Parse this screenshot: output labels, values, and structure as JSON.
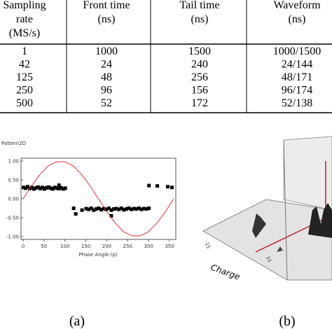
{
  "table": {
    "header": [
      [
        "Sampling",
        "rate",
        "(MS/s)"
      ],
      [
        "Front time",
        "(ns)"
      ],
      [
        "Tail time",
        "(ns)"
      ],
      [
        "Waveform",
        "(ns)"
      ]
    ],
    "rows": [
      [
        "1",
        "1000",
        "1500",
        "1000/1500"
      ],
      [
        "42",
        "24",
        "240",
        "24/144"
      ],
      [
        "125",
        "48",
        "256",
        "48/171"
      ],
      [
        "250",
        "96",
        "156",
        "96/174"
      ],
      [
        "500",
        "52",
        "172",
        "52/138"
      ]
    ]
  },
  "chart_data": {
    "type": "scatter",
    "title": "Pattern2D",
    "x_label": "Phase Angle (p)",
    "xlim": [
      0,
      360
    ],
    "ylim": [
      -1,
      1
    ],
    "xticks": [
      0,
      50,
      100,
      150,
      200,
      250,
      300,
      350
    ],
    "yticks": [
      {
        "value": 1,
        "label": "1.00"
      },
      {
        "value": 0.5,
        "label": "0.50"
      },
      {
        "value": 0,
        "label": "0.00"
      },
      {
        "value": -0.5,
        "label": "-0.50"
      },
      {
        "value": -1,
        "label": "-1.00"
      }
    ],
    "series": [
      {
        "color": "#000000",
        "mode": "markers",
        "x": [
          0,
          5,
          10,
          15,
          20,
          25,
          30,
          35,
          40,
          45,
          50,
          55,
          60,
          65,
          70,
          75,
          80,
          85,
          90,
          95,
          100,
          85,
          120,
          125,
          140,
          150,
          156,
          162,
          168,
          174,
          180,
          186,
          192,
          198,
          204,
          210,
          216,
          222,
          228,
          234,
          240,
          246,
          252,
          258,
          264,
          270,
          276,
          282,
          288,
          294,
          300,
          210,
          300,
          320,
          345,
          355
        ],
        "values": [
          0.3,
          0.28,
          0.32,
          0.27,
          0.3,
          0.26,
          0.29,
          0.31,
          0.27,
          0.3,
          0.26,
          0.29,
          0.31,
          0.28,
          0.26,
          0.3,
          0.28,
          0.27,
          0.29,
          0.26,
          0.28,
          0.36,
          -0.25,
          -0.4,
          -0.3,
          -0.26,
          -0.28,
          -0.25,
          -0.3,
          -0.27,
          -0.25,
          -0.29,
          -0.26,
          -0.28,
          -0.25,
          -0.3,
          -0.27,
          -0.26,
          -0.28,
          -0.25,
          -0.29,
          -0.27,
          -0.25,
          -0.28,
          -0.26,
          -0.27,
          -0.25,
          -0.28,
          -0.26,
          -0.27,
          -0.25,
          -0.45,
          0.35,
          0.34,
          0.32,
          0.3
        ]
      },
      {
        "color": "#e03030",
        "mode": "lines",
        "x": [
          0,
          20,
          40,
          60,
          80,
          100,
          120,
          140,
          160,
          180,
          200,
          220,
          240,
          260,
          280,
          300,
          320,
          340,
          360
        ],
        "values": [
          0,
          0.34,
          0.64,
          0.87,
          0.98,
          0.98,
          0.87,
          0.64,
          0.34,
          0,
          -0.34,
          -0.64,
          -0.87,
          -0.98,
          -0.98,
          -0.87,
          -0.64,
          -0.34,
          0
        ]
      }
    ]
  },
  "panel_b": {
    "axis_label": "Charge",
    "tick_labels": [
      "-15",
      "15"
    ]
  },
  "captions": [
    "(a)",
    "(b)"
  ]
}
